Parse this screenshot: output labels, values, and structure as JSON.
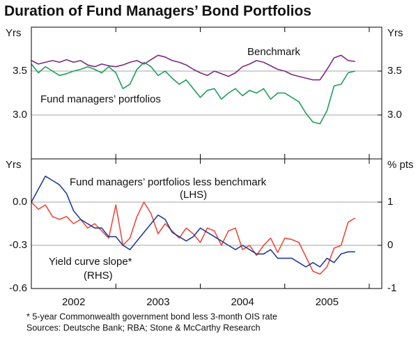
{
  "title": "Duration of Fund Managers’ Bond Portfolios",
  "notes": [
    "* 5-year Commonwealth government bond less 3-month OIS rate",
    "Sources: Deutsche Bank; RBA; Stone & McCarthy Research"
  ],
  "chart_data": [
    {
      "type": "line",
      "y_label": "Yrs",
      "y2_label": "Yrs",
      "ylim": [
        2.5,
        4.0
      ],
      "yticks": [
        {
          "value": 3.0,
          "label": "3.0"
        },
        {
          "value": 3.5,
          "label": "3.5"
        }
      ],
      "y2lim": [
        2.5,
        4.0
      ],
      "y2ticks": [
        {
          "value": 3.0,
          "label": "3.0"
        },
        {
          "value": 3.5,
          "label": "3.5"
        }
      ],
      "grid": true,
      "series": [
        {
          "name": "Benchmark",
          "color": "#7d2a80",
          "values": [
            3.62,
            3.58,
            3.6,
            3.62,
            3.6,
            3.63,
            3.6,
            3.62,
            3.57,
            3.55,
            3.58,
            3.56,
            3.55,
            3.57,
            3.6,
            3.62,
            3.58,
            3.63,
            3.68,
            3.66,
            3.62,
            3.6,
            3.57,
            3.52,
            3.48,
            3.45,
            3.5,
            3.47,
            3.44,
            3.48,
            3.55,
            3.58,
            3.62,
            3.6,
            3.56,
            3.52,
            3.5,
            3.46,
            3.44,
            3.42,
            3.4,
            3.4,
            3.52,
            3.65,
            3.68,
            3.62,
            3.61
          ]
        },
        {
          "name": "Fund managers’ portfolios",
          "color": "#1e9e5a",
          "values": [
            3.58,
            3.48,
            3.55,
            3.5,
            3.45,
            3.47,
            3.5,
            3.52,
            3.55,
            3.52,
            3.48,
            3.55,
            3.48,
            3.3,
            3.35,
            3.52,
            3.6,
            3.55,
            3.45,
            3.5,
            3.42,
            3.35,
            3.4,
            3.3,
            3.2,
            3.28,
            3.3,
            3.18,
            3.25,
            3.3,
            3.22,
            3.28,
            3.25,
            3.3,
            3.18,
            3.25,
            3.25,
            3.2,
            3.15,
            3.02,
            2.92,
            2.9,
            3.05,
            3.33,
            3.35,
            3.48,
            3.5
          ]
        }
      ]
    },
    {
      "type": "line",
      "y_label": "Yrs",
      "y2_label": "% pts",
      "ylim": [
        -0.6,
        0.3
      ],
      "yticks": [
        {
          "value": 0.0,
          "label": "0.0"
        },
        -0.3,
        -0.6
      ],
      "y2lim": [
        -1,
        2
      ],
      "y2ticks": [
        1,
        0,
        -1
      ],
      "grid": true,
      "x_labels": [
        "2002",
        "2003",
        "2004",
        "2005"
      ],
      "series": [
        {
          "name": "Fund managers’ portfolios less benchmark",
          "note": "(LHS)",
          "color": "#ee4a3c",
          "values": [
            0.0,
            -0.05,
            -0.02,
            -0.1,
            -0.12,
            -0.1,
            -0.15,
            -0.12,
            -0.18,
            -0.15,
            -0.2,
            -0.25,
            -0.02,
            -0.3,
            -0.25,
            -0.1,
            0.0,
            -0.08,
            -0.22,
            -0.15,
            -0.2,
            -0.25,
            -0.18,
            -0.22,
            -0.28,
            -0.18,
            -0.2,
            -0.3,
            -0.2,
            -0.18,
            -0.33,
            -0.3,
            -0.37,
            -0.3,
            -0.25,
            -0.35,
            -0.25,
            -0.26,
            -0.28,
            -0.38,
            -0.48,
            -0.5,
            -0.45,
            -0.32,
            -0.3,
            -0.14,
            -0.11
          ]
        },
        {
          "name": "Yield curve slope*",
          "note": "(RHS)",
          "color": "#1f3d93",
          "axis": "y2",
          "values": [
            1.0,
            1.3,
            1.6,
            1.5,
            1.4,
            1.2,
            0.8,
            0.6,
            0.5,
            0.4,
            0.4,
            0.2,
            0.2,
            0.0,
            -0.1,
            0.1,
            0.3,
            0.5,
            0.7,
            0.6,
            0.3,
            0.2,
            0.1,
            0.2,
            0.4,
            0.3,
            0.2,
            0.1,
            0.0,
            -0.1,
            0.0,
            -0.1,
            -0.2,
            -0.2,
            -0.1,
            -0.3,
            -0.3,
            -0.3,
            -0.4,
            -0.5,
            -0.4,
            -0.5,
            -0.3,
            -0.4,
            -0.2,
            -0.15,
            -0.15
          ]
        }
      ]
    }
  ]
}
